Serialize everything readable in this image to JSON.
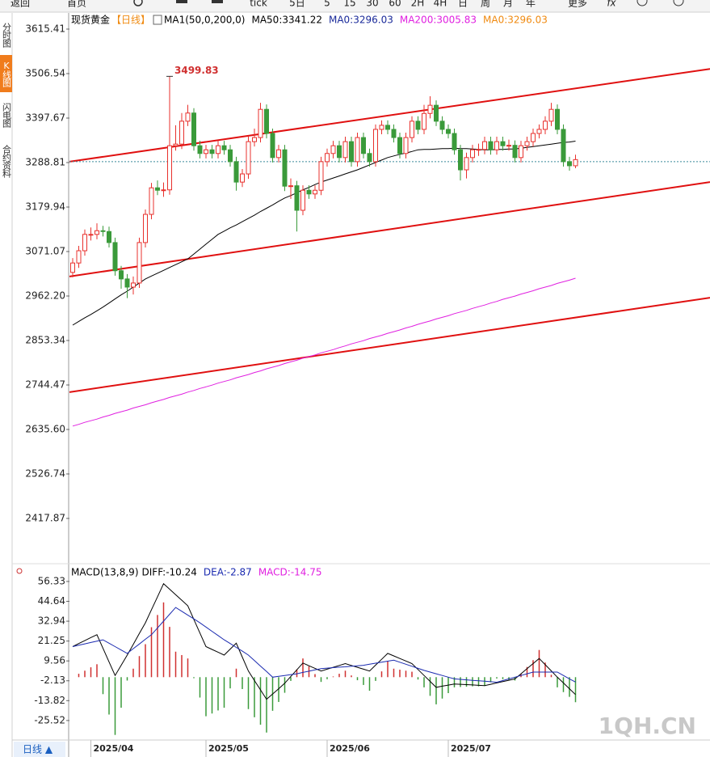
{
  "ui": {
    "toolbar": [
      "返回",
      "首页",
      "tick",
      "5日",
      "5",
      "15",
      "30",
      "60",
      "2H",
      "4H",
      "日",
      "周",
      "月",
      "年",
      "更多",
      "fx"
    ],
    "sidebar": [
      "分时图",
      "K线图",
      "闪电图",
      "合约资料"
    ],
    "period_tab": "日线 ▲",
    "watermark": "1QH.CN"
  },
  "chart_data": [
    {
      "type": "candlestick",
      "title": "现货黄金",
      "period": "【日线】",
      "indicator": "MA1(50,0,200,0)",
      "categories": [
        null,
        null,
        null,
        "2025/04",
        null,
        null,
        null,
        null,
        null,
        null,
        null,
        null,
        null,
        null,
        null,
        null,
        null,
        null,
        null,
        null,
        null,
        null,
        "2025/05",
        null,
        null,
        null,
        null,
        null,
        null,
        null,
        null,
        null,
        null,
        null,
        null,
        null,
        null,
        null,
        null,
        null,
        null,
        null,
        "2025/06",
        null,
        null,
        null,
        null,
        null,
        null,
        null,
        null,
        null,
        null,
        null,
        null,
        null,
        null,
        null,
        null,
        null,
        null,
        null,
        "2025/07",
        null,
        null,
        null,
        null,
        null,
        null,
        null,
        null,
        null,
        null,
        null,
        null,
        null,
        null,
        null,
        null,
        null,
        null,
        null,
        null,
        null
      ],
      "open": [
        3020,
        3043,
        3073,
        3113,
        3113,
        3122,
        3120,
        3093,
        3024,
        3004,
        2984,
        2994,
        3093,
        3162,
        3227,
        3221,
        3222,
        3330,
        3334,
        3390,
        3410,
        3330,
        3311,
        3320,
        3311,
        3330,
        3320,
        3291,
        3241,
        3261,
        3340,
        3350,
        3419,
        3360,
        3301,
        3320,
        3231,
        3232,
        3172,
        3221,
        3212,
        3221,
        3291,
        3311,
        3330,
        3301,
        3340,
        3291,
        3350,
        3311,
        3291,
        3370,
        3380,
        3370,
        3350,
        3311,
        3350,
        3390,
        3370,
        3409,
        3429,
        3390,
        3370,
        3360,
        3320,
        3271,
        3301,
        3320,
        3321,
        3340,
        3320,
        3340,
        3330,
        3331,
        3301,
        3330,
        3340,
        3360,
        3370,
        3390,
        3419,
        3370,
        3291,
        3281
      ],
      "high": [
        3055,
        3085,
        3125,
        3130,
        3140,
        3134,
        3132,
        3105,
        3036,
        3016,
        3010,
        3105,
        3174,
        3239,
        3245,
        3240,
        3499.83,
        3380,
        3410,
        3430,
        3422,
        3342,
        3332,
        3332,
        3342,
        3342,
        3332,
        3303,
        3273,
        3352,
        3372,
        3435,
        3431,
        3372,
        3332,
        3332,
        3250,
        3244,
        3233,
        3233,
        3233,
        3303,
        3323,
        3342,
        3342,
        3352,
        3352,
        3362,
        3362,
        3323,
        3382,
        3392,
        3392,
        3382,
        3362,
        3362,
        3402,
        3402,
        3430,
        3451,
        3441,
        3402,
        3382,
        3372,
        3332,
        3313,
        3332,
        3335,
        3352,
        3352,
        3352,
        3352,
        3345,
        3343,
        3342,
        3352,
        3372,
        3382,
        3402,
        3435,
        3431,
        3382,
        3303,
        3308
      ],
      "low": [
        3008,
        3031,
        3061,
        3098,
        3101,
        3108,
        3081,
        3012,
        2980,
        2957,
        2966,
        2982,
        3081,
        3150,
        3209,
        3205,
        3210,
        3318,
        3322,
        3378,
        3318,
        3299,
        3299,
        3299,
        3299,
        3308,
        3279,
        3220,
        3229,
        3249,
        3328,
        3338,
        3348,
        3289,
        3289,
        3219,
        3200,
        3120,
        3160,
        3200,
        3200,
        3209,
        3279,
        3299,
        3289,
        3289,
        3279,
        3279,
        3299,
        3279,
        3279,
        3358,
        3358,
        3338,
        3299,
        3299,
        3338,
        3358,
        3358,
        3397,
        3378,
        3358,
        3348,
        3308,
        3245,
        3250,
        3289,
        3305,
        3309,
        3308,
        3308,
        3318,
        3318,
        3289,
        3289,
        3318,
        3328,
        3348,
        3358,
        3378,
        3358,
        3279,
        3269,
        3275
      ],
      "close": [
        3043,
        3073,
        3113,
        3113,
        3122,
        3120,
        3093,
        3024,
        3004,
        2984,
        2994,
        3093,
        3162,
        3227,
        3221,
        3222,
        3330,
        3334,
        3390,
        3410,
        3330,
        3311,
        3320,
        3311,
        3330,
        3320,
        3291,
        3241,
        3261,
        3340,
        3350,
        3419,
        3360,
        3301,
        3320,
        3231,
        3232,
        3172,
        3221,
        3212,
        3221,
        3291,
        3311,
        3330,
        3301,
        3340,
        3291,
        3350,
        3311,
        3291,
        3370,
        3380,
        3370,
        3350,
        3311,
        3350,
        3390,
        3370,
        3409,
        3429,
        3390,
        3370,
        3360,
        3320,
        3271,
        3301,
        3320,
        3321,
        3340,
        3320,
        3340,
        3330,
        3331,
        3301,
        3330,
        3340,
        3360,
        3370,
        3390,
        3419,
        3370,
        3291,
        3281,
        3296
      ],
      "up_color": "#e8302c",
      "down_color": "#3a9a3a",
      "ylim": [
        2311,
        3651
      ],
      "yticks": [
        3615.41,
        3506.54,
        3397.67,
        3288.81,
        3179.94,
        3071.07,
        {
          "value": 2962.2,
          "label": "2962.20"
        },
        2853.34,
        2744.47,
        {
          "value": 2635.6,
          "label": "2635.60"
        },
        2526.74,
        2417.87
      ],
      "series": [
        {
          "name": "MA50:3341.22",
          "color": "#000000",
          "values": [
            2891,
            2900,
            2909,
            2917,
            2926,
            2935,
            2945,
            2955,
            2965,
            2974,
            2984,
            2994,
            3004,
            3011,
            3018,
            3025,
            3032,
            3039,
            3046,
            3053,
            3065,
            3077,
            3089,
            3101,
            3113,
            3121,
            3129,
            3136,
            3144,
            3152,
            3160,
            3169,
            3177,
            3185,
            3194,
            3202,
            3208,
            3215,
            3222,
            3228,
            3235,
            3241,
            3246,
            3251,
            3256,
            3261,
            3266,
            3271,
            3277,
            3283,
            3289,
            3295,
            3301,
            3305,
            3309,
            3312,
            3316,
            3320,
            3321,
            3321,
            3322,
            3323,
            3323,
            3324,
            3323,
            3323,
            3322,
            3321,
            3320,
            3320,
            3321,
            3321,
            3322,
            3322,
            3324,
            3326,
            3328,
            3330,
            3332,
            3334,
            3336,
            3338,
            3339,
            3341.22
          ]
        },
        {
          "name": "MA200:3005.83",
          "color": "#e020e0",
          "values": [
            2644,
            2648,
            2653,
            2657,
            2661,
            2666,
            2670,
            2675,
            2679,
            2683,
            2688,
            2692,
            2696,
            2701,
            2705,
            2709,
            2714,
            2718,
            2722,
            2727,
            2731,
            2736,
            2740,
            2744,
            2749,
            2753,
            2757,
            2762,
            2766,
            2770,
            2775,
            2779,
            2784,
            2788,
            2792,
            2797,
            2801,
            2805,
            2810,
            2814,
            2818,
            2823,
            2827,
            2831,
            2836,
            2840,
            2845,
            2849,
            2853,
            2858,
            2862,
            2866,
            2871,
            2875,
            2879,
            2884,
            2888,
            2893,
            2897,
            2901,
            2906,
            2910,
            2914,
            2919,
            2923,
            2927,
            2932,
            2936,
            2940,
            2945,
            2949,
            2954,
            2958,
            2962,
            2967,
            2971,
            2975,
            2980,
            2984,
            2988,
            2993,
            2997,
            3001,
            3005.83
          ]
        }
      ],
      "legend_extra": [
        {
          "name": "MA0:3296.03",
          "color": "#1a2a9a"
        },
        {
          "name": "MA0:3296.03",
          "color": "#f08a10"
        }
      ],
      "trend_lines": [
        {
          "color": "#e01010",
          "values": [
            3291,
            3518
          ]
        },
        {
          "color": "#e01010",
          "values": [
            3010,
            3241
          ]
        },
        {
          "color": "#e01010",
          "values": [
            2727,
            2958
          ]
        }
      ],
      "price_line": 3291
    },
    {
      "type": "macd",
      "title": "MACD(13,8,9)",
      "ylim": [
        -37,
        66.3
      ],
      "yticks": [
        56.33,
        44.64,
        32.94,
        21.25,
        9.56,
        -2.13,
        -13.82,
        -25.52
      ],
      "series": [
        {
          "name": "DIFF:-10.24",
          "color": "#000000",
          "values": [
            18,
            19.8,
            21.5,
            23.3,
            25,
            17,
            9,
            1,
            7,
            13,
            19.3,
            25.7,
            32,
            39.7,
            47.3,
            55,
            51.8,
            48.5,
            45.3,
            42,
            34,
            26,
            18,
            16.3,
            14.7,
            13,
            16.5,
            20,
            11.8,
            3.6,
            -2,
            -7.5,
            -13,
            -9.9,
            -6.8,
            -3.6,
            0.4,
            4.3,
            8.3,
            6.7,
            5.2,
            3.6,
            4.7,
            5.8,
            6.9,
            8,
            6.9,
            5.8,
            4.7,
            3.6,
            7.1,
            10.5,
            14,
            12.5,
            11,
            9.5,
            8,
            4.5,
            1,
            -2.5,
            -6,
            -5.3,
            -4.7,
            -4,
            -4.2,
            -4.4,
            -4.6,
            -4.8,
            -5,
            -4.2,
            -3.4,
            -2.6,
            -1.8,
            -1,
            2,
            5,
            8,
            11,
            7.3,
            3.7,
            0,
            -3.4,
            -6.8,
            -10.24
          ]
        },
        {
          "name": "DEA:-2.87",
          "color": "#1a2ab0",
          "values": [
            18,
            18.8,
            19.6,
            20.4,
            21.2,
            22,
            20,
            18,
            16,
            14,
            16.8,
            19.5,
            22.3,
            25,
            29,
            33,
            37,
            41,
            38.8,
            36.5,
            34.3,
            32,
            29.5,
            27,
            24.5,
            22,
            19.8,
            17.5,
            15.3,
            13,
            9.8,
            6.5,
            3.3,
            0,
            0.5,
            1,
            1.5,
            2,
            2.8,
            3.5,
            4.3,
            5,
            5.3,
            5.6,
            5.9,
            6.1,
            6.4,
            6.7,
            7,
            7.6,
            8.2,
            8.8,
            9.4,
            10,
            8.8,
            7.6,
            6.4,
            5.2,
            4,
            3,
            2,
            1,
            0,
            -1,
            -1.3,
            -1.6,
            -1.9,
            -2.1,
            -2.4,
            -2.7,
            -3,
            -2,
            -1,
            0,
            1,
            2,
            3,
            3,
            3,
            3,
            3,
            1,
            -1,
            -2.87
          ]
        },
        {
          "name": "MACD:-14.75",
          "color": "#e020e0",
          "up_color": "#d03030",
          "down_color": "#3a9a3a",
          "values": [
            0,
            2,
            3.8,
            5.8,
            7.6,
            -10,
            -22,
            -34,
            -18,
            -2,
            5,
            12.4,
            19.4,
            29.4,
            36.6,
            44,
            29.6,
            15,
            13,
            11,
            -0.6,
            -12,
            -23,
            -21.4,
            -19.6,
            -18,
            -6.6,
            5,
            -7,
            -18.8,
            -23.6,
            -28,
            -32.6,
            -19.8,
            -14.6,
            -9.2,
            -2.2,
            4.6,
            11,
            6.4,
            1.8,
            -2.8,
            -1.2,
            0.4,
            2,
            3.8,
            1,
            -1.8,
            -4.6,
            -8,
            -2.2,
            3.4,
            9.2,
            5,
            4.4,
            3.8,
            3.2,
            -1.4,
            -6,
            -11,
            -16,
            -12.6,
            -9.4,
            -6,
            -5.8,
            -5.6,
            -5.4,
            -5.4,
            -5.2,
            -3,
            -0.8,
            -1.2,
            -1.6,
            -2,
            2,
            6,
            10,
            16,
            8.6,
            1.4,
            -6,
            -8.8,
            -11.6,
            -14.75
          ]
        }
      ]
    }
  ]
}
